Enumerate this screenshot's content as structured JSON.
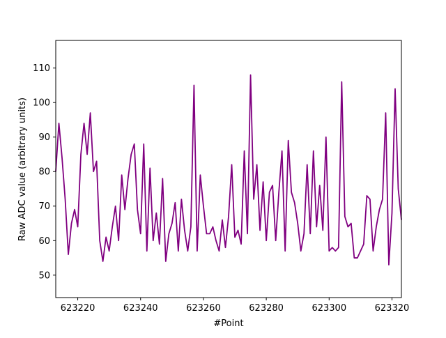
{
  "chart_data": {
    "type": "line",
    "title": "",
    "xlabel": "#Point",
    "ylabel": "Raw ADC value (arbitrary units)",
    "xlim": [
      623213,
      623323
    ],
    "ylim": [
      43.5,
      118
    ],
    "x_ticks": [
      623220,
      623240,
      623260,
      623280,
      623300,
      623320
    ],
    "y_ticks": [
      50,
      60,
      70,
      80,
      90,
      100,
      110
    ],
    "grid": false,
    "line_color": "#800080",
    "series": [
      {
        "x": [
          623213,
          623214,
          623215,
          623216,
          623217,
          623218,
          623219,
          623220,
          623221,
          623222,
          623223,
          623224,
          623225,
          623226,
          623227,
          623228,
          623229,
          623230,
          623231,
          623232,
          623233,
          623234,
          623235,
          623236,
          623237,
          623238,
          623239,
          623240,
          623241,
          623242,
          623243,
          623244,
          623245,
          623246,
          623247,
          623248,
          623249,
          623250,
          623251,
          623252,
          623253,
          623254,
          623255,
          623256,
          623257,
          623258,
          623259,
          623260,
          623261,
          623262,
          623263,
          623264,
          623265,
          623266,
          623267,
          623268,
          623269,
          623270,
          623271,
          623272,
          623273,
          623274,
          623275,
          623276,
          623277,
          623278,
          623279,
          623280,
          623281,
          623282,
          623283,
          623284,
          623285,
          623286,
          623287,
          623288,
          623289,
          623290,
          623291,
          623292,
          623293,
          623294,
          623295,
          623296,
          623297,
          623298,
          623299,
          623300,
          623301,
          623302,
          623303,
          623304,
          623305,
          623306,
          623307,
          623308,
          623309,
          623310,
          623311,
          623312,
          623313,
          623314,
          623315,
          623316,
          623317,
          623318,
          623319,
          623320,
          623321,
          623322,
          623323
        ],
        "values": [
          80,
          94,
          84,
          72,
          56,
          65,
          69,
          64,
          85,
          94,
          85,
          97,
          80,
          83,
          60,
          54,
          61,
          57,
          64,
          70,
          60,
          79,
          69,
          78,
          85,
          88,
          69,
          62,
          88,
          57,
          81,
          60,
          68,
          59,
          78,
          54,
          62,
          65,
          71,
          57,
          72,
          63,
          57,
          64,
          105,
          57,
          79,
          70,
          62,
          62,
          64,
          60,
          57,
          66,
          58,
          67,
          82,
          61,
          63,
          59,
          86,
          62,
          108,
          72,
          82,
          63,
          77,
          60,
          74,
          76,
          60,
          74,
          86,
          57,
          89,
          74,
          71,
          65,
          57,
          62,
          82,
          62,
          86,
          64,
          76,
          63,
          90,
          57,
          58,
          57,
          58,
          106,
          67,
          64,
          65,
          55,
          55,
          57,
          59,
          73,
          72,
          57,
          64,
          69,
          72,
          97,
          53,
          68,
          104,
          75,
          66
        ]
      }
    ]
  }
}
